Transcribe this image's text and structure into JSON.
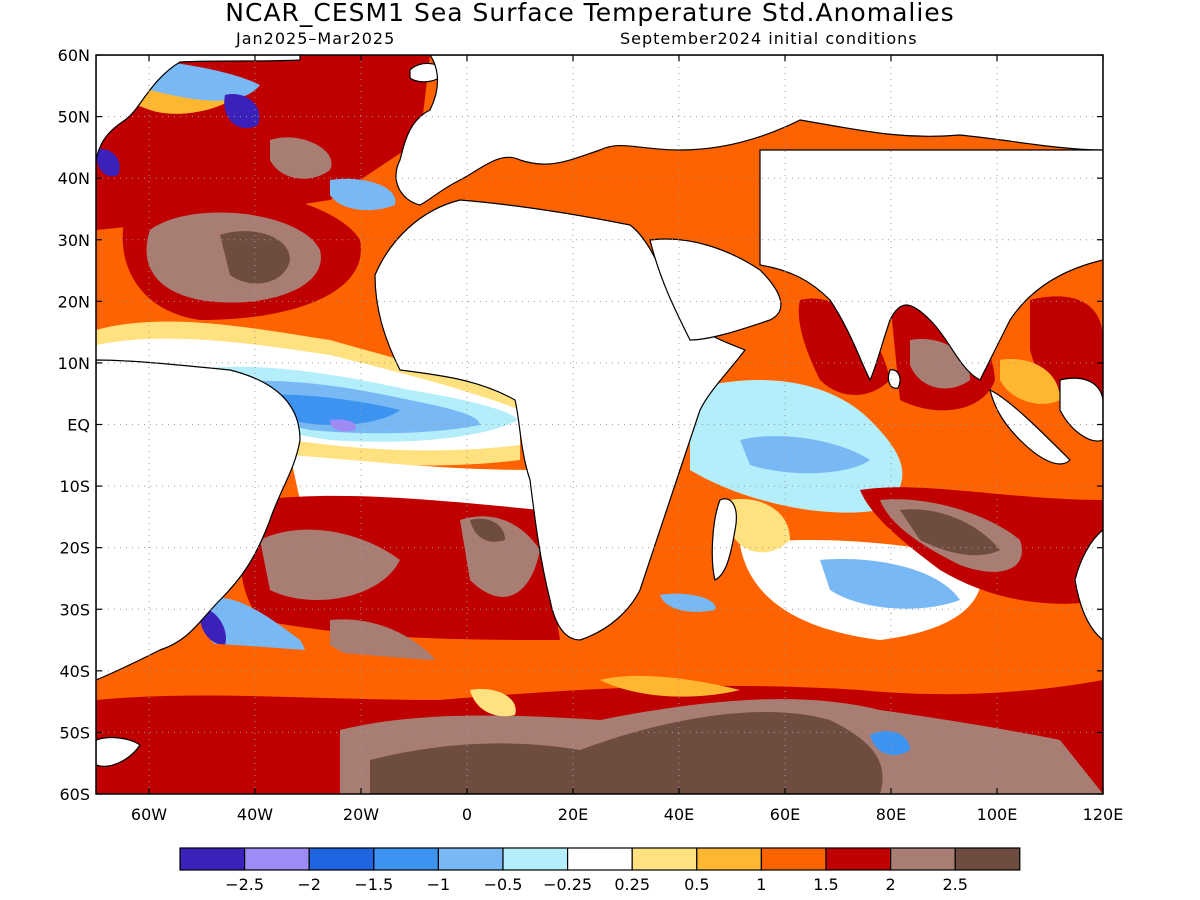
{
  "title": "NCAR_CESM1 Sea Surface Temperature Std.Anomalies",
  "subtitle_left": "Jan2025–Mar2025",
  "subtitle_right": "September2024 initial conditions",
  "lat_ticks": [
    "60N",
    "50N",
    "40N",
    "30N",
    "20N",
    "10N",
    "EQ",
    "10S",
    "20S",
    "30S",
    "40S",
    "50S",
    "60S"
  ],
  "lon_ticks": [
    "60W",
    "40W",
    "20W",
    "0",
    "20E",
    "40E",
    "60E",
    "80E",
    "100E",
    "120E"
  ],
  "legend": {
    "colors": [
      "#3b21b9",
      "#9f8bf5",
      "#1f64e0",
      "#3d94f0",
      "#78b9f5",
      "#b3eefa",
      "#ffffff",
      "#ffe180",
      "#ffb732",
      "#ff6300",
      "#c00000",
      "#a87e74",
      "#6f4c40"
    ],
    "labels": [
      "−2.5",
      "−2",
      "−1.5",
      "−1",
      "−0.5",
      "−0.25",
      "0.25",
      "0.5",
      "1",
      "1.5",
      "2",
      "2.5"
    ]
  },
  "map": {
    "lon_range": [
      -70,
      120
    ],
    "lat_range": [
      -60,
      60
    ],
    "land_color": "#ffffff"
  }
}
